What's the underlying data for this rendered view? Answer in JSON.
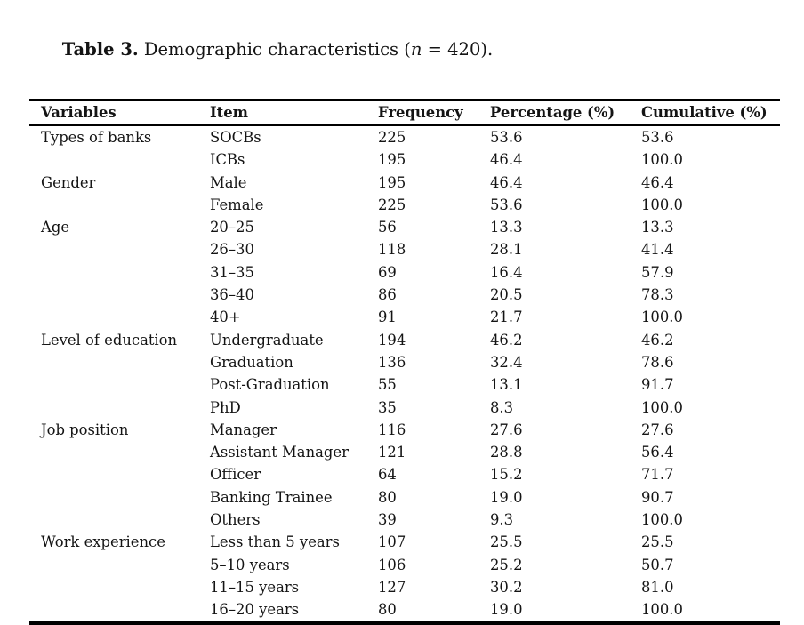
{
  "page": {
    "title": {
      "prefix": "Table 3.",
      "before_n": " Demographic characteristics (",
      "n_symbol": "n",
      "after_n": " = 420)."
    }
  },
  "table": {
    "columns": [
      "Variables",
      "Item",
      "Frequency",
      "Percentage (%)",
      "Cumulative (%)"
    ],
    "groups": [
      {
        "variable": "Types of banks",
        "rows": [
          [
            "SOCBs",
            "225",
            "53.6",
            "53.6"
          ],
          [
            "ICBs",
            "195",
            "46.4",
            "100.0"
          ]
        ]
      },
      {
        "variable": "Gender",
        "rows": [
          [
            "Male",
            "195",
            "46.4",
            "46.4"
          ],
          [
            "Female",
            "225",
            "53.6",
            "100.0"
          ]
        ]
      },
      {
        "variable": "Age",
        "rows": [
          [
            "20–25",
            "56",
            "13.3",
            "13.3"
          ],
          [
            "26–30",
            "118",
            "28.1",
            "41.4"
          ],
          [
            "31–35",
            "69",
            "16.4",
            "57.9"
          ],
          [
            "36–40",
            "86",
            "20.5",
            "78.3"
          ],
          [
            "40+",
            "91",
            "21.7",
            "100.0"
          ]
        ]
      },
      {
        "variable": "Level of education",
        "rows": [
          [
            "Undergraduate",
            "194",
            "46.2",
            "46.2"
          ],
          [
            "Graduation",
            "136",
            "32.4",
            "78.6"
          ],
          [
            "Post-Graduation",
            "55",
            "13.1",
            "91.7"
          ],
          [
            "PhD",
            "35",
            "8.3",
            "100.0"
          ]
        ]
      },
      {
        "variable": "Job position",
        "rows": [
          [
            "Manager",
            "116",
            "27.6",
            "27.6"
          ],
          [
            "Assistant Manager",
            "121",
            "28.8",
            "56.4"
          ],
          [
            "Officer",
            "64",
            "15.2",
            "71.7"
          ],
          [
            "Banking Trainee",
            "80",
            "19.0",
            "90.7"
          ],
          [
            "Others",
            "39",
            "9.3",
            "100.0"
          ]
        ]
      },
      {
        "variable": "Work experience",
        "rows": [
          [
            "Less than 5 years",
            "107",
            "25.5",
            "25.5"
          ],
          [
            "5–10 years",
            "106",
            "25.2",
            "50.7"
          ],
          [
            "11–15 years",
            "127",
            "30.2",
            "81.0"
          ],
          [
            "16–20 years",
            "80",
            "19.0",
            "100.0"
          ]
        ]
      }
    ]
  }
}
